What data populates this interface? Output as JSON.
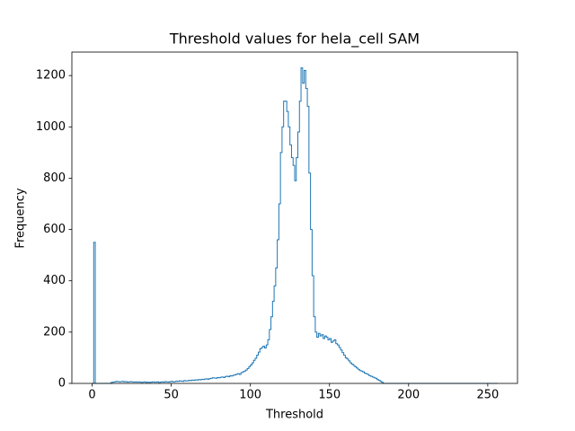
{
  "chart_data": {
    "type": "histogram",
    "title": "Threshold values for hela_cell SAM",
    "xlabel": "Threshold",
    "ylabel": "Frequency",
    "histtype": "step",
    "color": "#1f77b4",
    "bins": [
      0,
      1,
      2,
      3,
      4,
      5,
      6,
      7,
      8,
      9,
      10,
      11,
      12,
      13,
      14,
      15,
      16,
      17,
      18,
      19,
      20,
      21,
      22,
      23,
      24,
      25,
      26,
      27,
      28,
      29,
      30,
      31,
      32,
      33,
      34,
      35,
      36,
      37,
      38,
      39,
      40,
      41,
      42,
      43,
      44,
      45,
      46,
      47,
      48,
      49,
      50,
      51,
      52,
      53,
      54,
      55,
      56,
      57,
      58,
      59,
      60,
      61,
      62,
      63,
      64,
      65,
      66,
      67,
      68,
      69,
      70,
      71,
      72,
      73,
      74,
      75,
      76,
      77,
      78,
      79,
      80,
      81,
      82,
      83,
      84,
      85,
      86,
      87,
      88,
      89,
      90,
      91,
      92,
      93,
      94,
      95,
      96,
      97,
      98,
      99,
      100,
      101,
      102,
      103,
      104,
      105,
      106,
      107,
      108,
      109,
      110,
      111,
      112,
      113,
      114,
      115,
      116,
      117,
      118,
      119,
      120,
      121,
      122,
      123,
      124,
      125,
      126,
      127,
      128,
      129,
      130,
      131,
      132,
      133,
      134,
      135,
      136,
      137,
      138,
      139,
      140,
      141,
      142,
      143,
      144,
      145,
      146,
      147,
      148,
      149,
      150,
      151,
      152,
      153,
      154,
      155,
      156,
      157,
      158,
      159,
      160,
      161,
      162,
      163,
      164,
      165,
      166,
      167,
      168,
      169,
      170,
      171,
      172,
      173,
      174,
      175,
      176,
      177,
      178,
      179,
      180,
      181,
      182,
      183,
      184,
      185,
      186,
      187,
      188,
      189,
      190,
      191,
      192,
      193,
      194,
      195,
      196,
      197,
      198,
      199,
      200,
      201,
      202,
      203,
      204,
      205,
      206,
      207,
      208,
      209,
      210,
      211,
      212,
      213,
      214,
      215,
      216,
      217,
      218,
      219,
      220,
      221,
      222,
      223,
      224,
      225,
      226,
      227,
      228,
      229,
      230,
      231,
      232,
      233,
      234,
      235,
      236,
      237,
      238,
      239,
      240,
      241,
      242,
      243,
      244,
      245,
      246,
      247,
      248,
      249,
      250,
      251,
      252,
      253,
      254,
      255,
      256
    ],
    "values": [
      0,
      550,
      0,
      0,
      0,
      0,
      0,
      0,
      0,
      0,
      0,
      0,
      4,
      5,
      6,
      8,
      7,
      6,
      7,
      8,
      6,
      7,
      5,
      6,
      7,
      6,
      5,
      6,
      5,
      6,
      5,
      4,
      5,
      6,
      4,
      5,
      4,
      5,
      6,
      5,
      5,
      6,
      4,
      5,
      6,
      5,
      7,
      6,
      5,
      7,
      8,
      6,
      7,
      9,
      8,
      10,
      9,
      8,
      11,
      10,
      10,
      12,
      11,
      13,
      12,
      14,
      13,
      15,
      14,
      16,
      15,
      17,
      18,
      16,
      19,
      20,
      22,
      21,
      20,
      23,
      22,
      24,
      25,
      23,
      27,
      28,
      26,
      30,
      29,
      32,
      33,
      36,
      38,
      35,
      42,
      45,
      48,
      52,
      58,
      65,
      72,
      80,
      90,
      98,
      110,
      122,
      135,
      140,
      145,
      138,
      150,
      170,
      210,
      260,
      320,
      380,
      450,
      560,
      700,
      900,
      1000,
      1100,
      1100,
      1060,
      1000,
      930,
      880,
      850,
      790,
      880,
      980,
      1100,
      1230,
      1170,
      1220,
      1150,
      1080,
      820,
      600,
      420,
      260,
      200,
      180,
      195,
      185,
      190,
      175,
      185,
      180,
      170,
      175,
      160,
      165,
      170,
      155,
      150,
      140,
      130,
      120,
      110,
      100,
      95,
      88,
      80,
      75,
      70,
      65,
      60,
      55,
      50,
      48,
      45,
      40,
      38,
      35,
      30,
      28,
      25,
      22,
      20,
      15,
      12,
      8,
      4,
      0,
      0,
      0,
      0,
      0,
      0,
      0,
      0,
      0,
      0,
      0,
      0,
      0,
      0,
      0,
      0,
      0,
      0,
      0,
      0,
      0,
      0,
      0,
      0,
      0,
      0,
      0,
      0,
      0,
      0,
      0,
      0,
      0,
      0,
      0,
      0,
      0,
      0,
      0,
      0,
      0,
      0,
      0,
      0,
      0,
      0,
      0,
      0,
      0,
      0,
      0,
      0,
      0,
      0,
      0,
      0,
      0,
      0,
      0,
      0,
      0,
      0,
      0,
      0,
      0,
      0,
      0,
      0,
      0,
      0,
      0,
      0
    ],
    "xlim": [
      -12.8,
      268.8
    ],
    "ylim": [
      0,
      1291.5
    ],
    "xticks": [
      0,
      50,
      100,
      150,
      200,
      250
    ],
    "yticks": [
      0,
      200,
      400,
      600,
      800,
      1000,
      1200
    ]
  }
}
